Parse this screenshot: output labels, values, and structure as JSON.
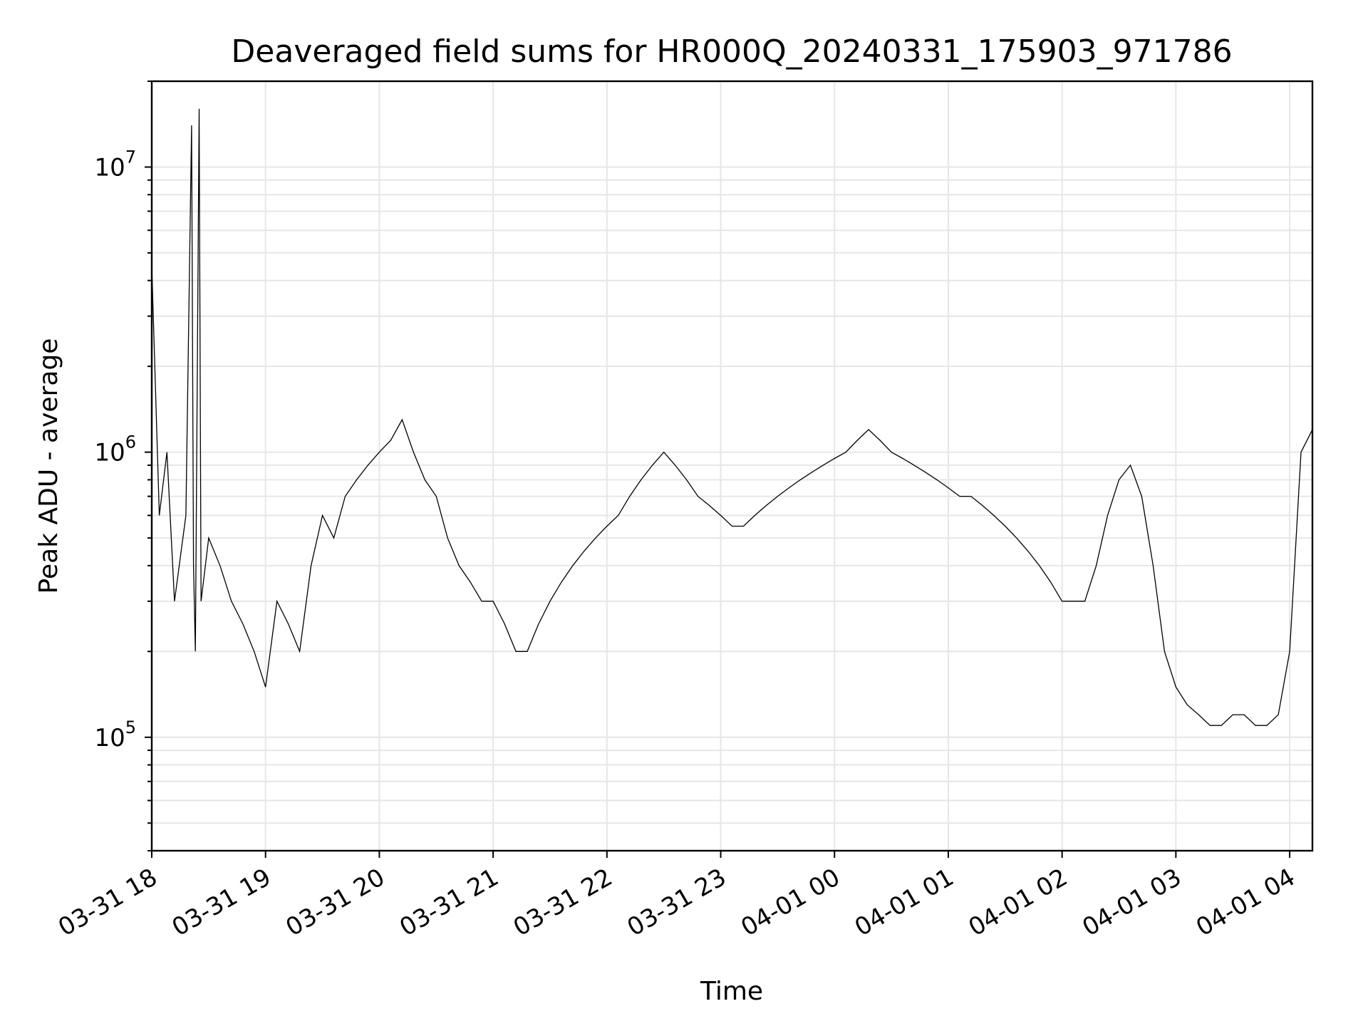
{
  "chart_data": {
    "type": "line",
    "title": "Deaveraged field sums for HR000Q_20240331_175903_971786",
    "xlabel": "Time",
    "ylabel": "Peak ADU - average",
    "yscale": "log",
    "ylim": [
      40000,
      20000000
    ],
    "xlim": [
      "2024-03-31 18:00",
      "2024-04-01 04:12"
    ],
    "grid": true,
    "line_color": "#000000",
    "x_tick_labels": [
      "03-31 18",
      "03-31 19",
      "03-31 20",
      "03-31 21",
      "03-31 22",
      "03-31 23",
      "04-01 00",
      "04-01 01",
      "04-01 02",
      "04-01 03",
      "04-01 04"
    ],
    "y_tick_labels": [
      {
        "base": "10",
        "exp": "5",
        "value": 100000
      },
      {
        "base": "10",
        "exp": "6",
        "value": 1000000
      },
      {
        "base": "10",
        "exp": "7",
        "value": 10000000
      }
    ],
    "series": [
      {
        "x": [
          "2024-03-31 18:00",
          "2024-03-31 18:04",
          "2024-03-31 18:08",
          "2024-03-31 18:12",
          "2024-03-31 18:18",
          "2024-03-31 18:21",
          "2024-03-31 18:22",
          "2024-03-31 18:23",
          "2024-03-31 18:25",
          "2024-03-31 18:26",
          "2024-03-31 18:30",
          "2024-03-31 18:36",
          "2024-03-31 18:42",
          "2024-03-31 18:48",
          "2024-03-31 18:54",
          "2024-03-31 19:00",
          "2024-03-31 19:06",
          "2024-03-31 19:12",
          "2024-03-31 19:18",
          "2024-03-31 19:24",
          "2024-03-31 19:30",
          "2024-03-31 19:36",
          "2024-03-31 19:42",
          "2024-03-31 19:48",
          "2024-03-31 19:54",
          "2024-03-31 20:00",
          "2024-03-31 20:06",
          "2024-03-31 20:12",
          "2024-03-31 20:18",
          "2024-03-31 20:24",
          "2024-03-31 20:30",
          "2024-03-31 20:36",
          "2024-03-31 20:42",
          "2024-03-31 20:48",
          "2024-03-31 20:54",
          "2024-03-31 21:00",
          "2024-03-31 21:06",
          "2024-03-31 21:12",
          "2024-03-31 21:18",
          "2024-03-31 21:24",
          "2024-03-31 21:30",
          "2024-03-31 21:36",
          "2024-03-31 21:42",
          "2024-03-31 21:48",
          "2024-03-31 21:54",
          "2024-03-31 22:00",
          "2024-03-31 22:06",
          "2024-03-31 22:12",
          "2024-03-31 22:18",
          "2024-03-31 22:24",
          "2024-03-31 22:30",
          "2024-03-31 22:36",
          "2024-03-31 22:42",
          "2024-03-31 22:48",
          "2024-03-31 22:54",
          "2024-03-31 23:00",
          "2024-03-31 23:06",
          "2024-03-31 23:12",
          "2024-03-31 23:18",
          "2024-03-31 23:24",
          "2024-03-31 23:30",
          "2024-03-31 23:36",
          "2024-03-31 23:42",
          "2024-03-31 23:48",
          "2024-03-31 23:54",
          "2024-04-01 00:00",
          "2024-04-01 00:06",
          "2024-04-01 00:12",
          "2024-04-01 00:18",
          "2024-04-01 00:24",
          "2024-04-01 00:30",
          "2024-04-01 00:36",
          "2024-04-01 00:42",
          "2024-04-01 00:48",
          "2024-04-01 00:54",
          "2024-04-01 01:00",
          "2024-04-01 01:06",
          "2024-04-01 01:12",
          "2024-04-01 01:18",
          "2024-04-01 01:24",
          "2024-04-01 01:30",
          "2024-04-01 01:36",
          "2024-04-01 01:42",
          "2024-04-01 01:48",
          "2024-04-01 01:54",
          "2024-04-01 02:00",
          "2024-04-01 02:06",
          "2024-04-01 02:12",
          "2024-04-01 02:18",
          "2024-04-01 02:24",
          "2024-04-01 02:30",
          "2024-04-01 02:36",
          "2024-04-01 02:42",
          "2024-04-01 02:48",
          "2024-04-01 02:54",
          "2024-04-01 03:00",
          "2024-04-01 03:06",
          "2024-04-01 03:12",
          "2024-04-01 03:18",
          "2024-04-01 03:24",
          "2024-04-01 03:30",
          "2024-04-01 03:36",
          "2024-04-01 03:42",
          "2024-04-01 03:48",
          "2024-04-01 03:54",
          "2024-04-01 04:00",
          "2024-04-01 04:06",
          "2024-04-01 04:12"
        ],
        "y": [
          4500000,
          600000,
          1000000,
          300000,
          600000,
          14000000,
          400000,
          200000,
          16000000,
          300000,
          500000,
          400000,
          300000,
          250000,
          200000,
          150000,
          300000,
          250000,
          200000,
          400000,
          600000,
          500000,
          700000,
          800000,
          900000,
          1000000,
          1100000,
          1300000,
          1000000,
          800000,
          700000,
          500000,
          400000,
          350000,
          300000,
          300000,
          250000,
          200000,
          200000,
          250000,
          300000,
          350000,
          400000,
          450000,
          500000,
          550000,
          600000,
          700000,
          800000,
          900000,
          1000000,
          900000,
          800000,
          700000,
          650000,
          600000,
          550000,
          550000,
          600000,
          650000,
          700000,
          750000,
          800000,
          850000,
          900000,
          950000,
          1000000,
          1100000,
          1200000,
          1100000,
          1000000,
          950000,
          900000,
          850000,
          800000,
          750000,
          700000,
          700000,
          650000,
          600000,
          550000,
          500000,
          450000,
          400000,
          350000,
          300000,
          300000,
          300000,
          400000,
          600000,
          800000,
          900000,
          700000,
          400000,
          200000,
          150000,
          130000,
          120000,
          110000,
          110000,
          120000,
          120000,
          110000,
          110000,
          120000,
          200000,
          1000000,
          1200000
        ]
      }
    ]
  }
}
